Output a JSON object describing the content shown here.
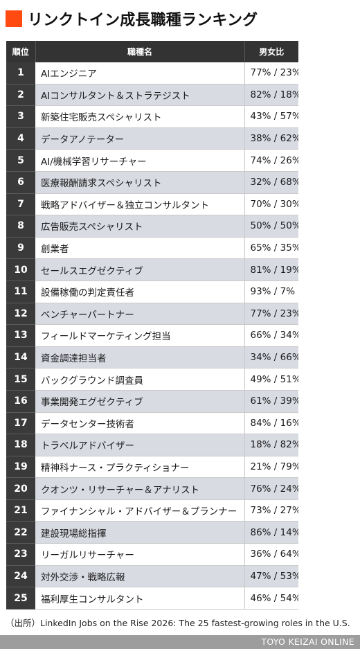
{
  "title": "リンクトイン成長職種ランキング",
  "table": {
    "headers": {
      "rank": "順位",
      "role": "職種名",
      "ratio": "男女比"
    },
    "rows": [
      {
        "rank": "1",
        "role": "AIエンジニア",
        "ratio": "77% / 23%"
      },
      {
        "rank": "2",
        "role": "AIコンサルタント＆ストラテジスト",
        "ratio": "82% / 18%"
      },
      {
        "rank": "3",
        "role": "新築住宅販売スペシャリスト",
        "ratio": "43% / 57%"
      },
      {
        "rank": "4",
        "role": "データアノテーター",
        "ratio": "38% / 62%"
      },
      {
        "rank": "5",
        "role": "AI/機械学習リサーチャー",
        "ratio": "74% / 26%"
      },
      {
        "rank": "6",
        "role": "医療報酬請求スペシャリスト",
        "ratio": "32% / 68%"
      },
      {
        "rank": "7",
        "role": "戦略アドバイザー＆独立コンサルタント",
        "ratio": "70% / 30%"
      },
      {
        "rank": "8",
        "role": "広告販売スペシャリスト",
        "ratio": "50% / 50%"
      },
      {
        "rank": "9",
        "role": "創業者",
        "ratio": "65% / 35%"
      },
      {
        "rank": "10",
        "role": "セールスエグゼクティブ",
        "ratio": "81% / 19%"
      },
      {
        "rank": "11",
        "role": "設備稼働の判定責任者",
        "ratio": "93% / 7%"
      },
      {
        "rank": "12",
        "role": "ベンチャーパートナー",
        "ratio": "77% / 23%"
      },
      {
        "rank": "13",
        "role": "フィールドマーケティング担当",
        "ratio": "66% / 34%"
      },
      {
        "rank": "14",
        "role": "資金調達担当者",
        "ratio": "34% / 66%"
      },
      {
        "rank": "15",
        "role": "バックグラウンド調査員",
        "ratio": "49% / 51%"
      },
      {
        "rank": "16",
        "role": "事業開発エグゼクティブ",
        "ratio": "61% / 39%"
      },
      {
        "rank": "17",
        "role": "データセンター技術者",
        "ratio": "84% / 16%"
      },
      {
        "rank": "18",
        "role": "トラベルアドバイザー",
        "ratio": "18% / 82%"
      },
      {
        "rank": "19",
        "role": "精神科ナース・プラクティショナー",
        "ratio": "21% / 79%"
      },
      {
        "rank": "20",
        "role": "クオンツ・リサーチャー＆アナリスト",
        "ratio": "76% / 24%"
      },
      {
        "rank": "21",
        "role": "ファイナンシャル・アドバイザー＆プランナー",
        "ratio": "73% / 27%"
      },
      {
        "rank": "22",
        "role": "建設現場総指揮",
        "ratio": "86% / 14%"
      },
      {
        "rank": "23",
        "role": "リーガルリサーチャー",
        "ratio": "36% / 64%"
      },
      {
        "rank": "24",
        "role": "対外交渉・戦略広報",
        "ratio": "47% / 53%"
      },
      {
        "rank": "25",
        "role": "福利厚生コンサルタント",
        "ratio": "46% / 54%"
      }
    ]
  },
  "source": "（出所）LinkedIn Jobs on the Rise 2026: The 25 fastest-growing roles in the U.S.",
  "footer": {
    "brand": "TOYO KEIZAI ONLINE"
  },
  "colors": {
    "accent": "#ff4a12",
    "header_bg": "#333333",
    "row_alt_bg": "#d9dbe3",
    "footer_bg": "#9d9d9d"
  }
}
